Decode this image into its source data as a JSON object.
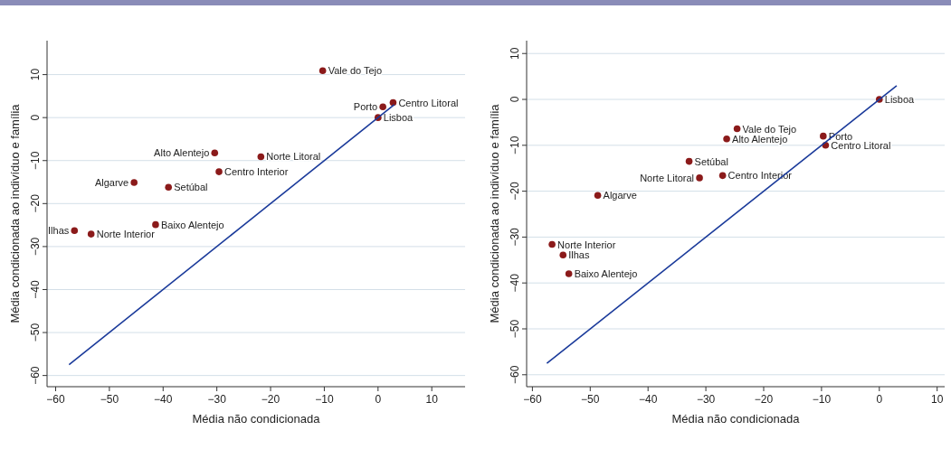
{
  "chart_data": [
    {
      "type": "scatter",
      "xlabel": "Média não condicionada",
      "ylabel": "Média condicionada ao indivíduo e família",
      "xlim": [
        -61.6,
        16.2
      ],
      "ylim": [
        -62.6,
        17.9
      ],
      "xticks": [
        {
          "value": -60,
          "label": "−60"
        },
        {
          "value": -50,
          "label": "−50"
        },
        {
          "value": -40,
          "label": "−40"
        },
        {
          "value": -30,
          "label": "−30"
        },
        {
          "value": -20,
          "label": "−20"
        },
        {
          "value": -10,
          "label": "−10"
        },
        {
          "value": 0,
          "label": "0"
        },
        {
          "value": 10,
          "label": "10"
        }
      ],
      "yticks": [
        {
          "value": -60,
          "label": "−60"
        },
        {
          "value": -50,
          "label": "−50"
        },
        {
          "value": -40,
          "label": "−40"
        },
        {
          "value": -30,
          "label": "−30"
        },
        {
          "value": -20,
          "label": "−20"
        },
        {
          "value": -10,
          "label": "−10"
        },
        {
          "value": 0,
          "label": "0"
        },
        {
          "value": 10,
          "label": "10"
        }
      ],
      "grid": "y",
      "marker": "circle",
      "series": [
        {
          "type": "scatter",
          "color": "#8b1a1a",
          "x": [
            -10.3,
            0.9,
            2.8,
            0.0,
            -30.4,
            -21.8,
            -29.6,
            -45.4,
            -39.0,
            -41.4,
            -56.5,
            -53.4
          ],
          "values": [
            10.9,
            2.5,
            3.5,
            0.0,
            -8.2,
            -9.1,
            -12.6,
            -15.1,
            -16.2,
            -24.9,
            -26.3,
            -27.1
          ]
        },
        {
          "type": "line",
          "color": "#1a3a9a",
          "marker": "none",
          "x": [
            -57.5,
            3
          ],
          "values": [
            -57.5,
            3
          ]
        }
      ],
      "annotations": [
        {
          "text": "Vale do Tejo",
          "x": -10.3,
          "y": 10.9
        },
        {
          "text": "Porto",
          "x": 0.9,
          "y": 2.5
        },
        {
          "text": "Centro Litoral",
          "x": 2.8,
          "y": 3.5
        },
        {
          "text": "Lisboa",
          "x": 0.0,
          "y": 0.0
        },
        {
          "text": "Alto Alentejo",
          "x": -30.4,
          "y": -8.2
        },
        {
          "text": "Norte Litoral",
          "x": -21.8,
          "y": -9.1
        },
        {
          "text": "Centro Interior",
          "x": -29.6,
          "y": -12.6
        },
        {
          "text": "Algarve",
          "x": -45.4,
          "y": -15.1
        },
        {
          "text": "Setúbal",
          "x": -39.0,
          "y": -16.2
        },
        {
          "text": "Baixo Alentejo",
          "x": -41.4,
          "y": -24.9
        },
        {
          "text": "Ilhas",
          "x": -56.5,
          "y": -26.3
        },
        {
          "text": "Norte Interior",
          "x": -53.4,
          "y": -27.1
        }
      ]
    },
    {
      "type": "scatter",
      "xlabel": "Média não condicionada",
      "ylabel": "Média condicionada ao indivíduo e família",
      "xlim": [
        -61.0,
        11.3
      ],
      "ylim": [
        -62.6,
        12.8
      ],
      "xticks": [
        {
          "value": -60,
          "label": "−60"
        },
        {
          "value": -50,
          "label": "−50"
        },
        {
          "value": -40,
          "label": "−40"
        },
        {
          "value": -30,
          "label": "−30"
        },
        {
          "value": -20,
          "label": "−20"
        },
        {
          "value": -10,
          "label": "−10"
        },
        {
          "value": 0,
          "label": "0"
        },
        {
          "value": 10,
          "label": "10"
        }
      ],
      "yticks": [
        {
          "value": -60,
          "label": "−60"
        },
        {
          "value": -50,
          "label": "−50"
        },
        {
          "value": -40,
          "label": "−40"
        },
        {
          "value": -30,
          "label": "−30"
        },
        {
          "value": -20,
          "label": "−20"
        },
        {
          "value": -10,
          "label": "−10"
        },
        {
          "value": 0,
          "label": "0"
        },
        {
          "value": 10,
          "label": "10"
        }
      ],
      "grid": "y",
      "marker": "circle",
      "series": [
        {
          "type": "scatter",
          "color": "#8b1a1a",
          "x": [
            0.0,
            -24.6,
            -26.4,
            -9.7,
            -9.3,
            -32.9,
            -31.1,
            -27.1,
            -48.7,
            -56.6,
            -54.7,
            -53.7
          ],
          "values": [
            0.0,
            -6.4,
            -8.6,
            -8.0,
            -10.0,
            -13.5,
            -17.1,
            -16.6,
            -20.9,
            -31.6,
            -33.9,
            -38.0
          ]
        },
        {
          "type": "line",
          "color": "#1a3a9a",
          "marker": "none",
          "x": [
            -57.5,
            3
          ],
          "values": [
            -57.5,
            3
          ]
        }
      ],
      "annotations": [
        {
          "text": "Lisboa",
          "x": 0.0,
          "y": 0.0
        },
        {
          "text": "Vale do Tejo",
          "x": -24.6,
          "y": -6.4
        },
        {
          "text": "Alto Alentejo",
          "x": -26.4,
          "y": -8.6
        },
        {
          "text": "Porto",
          "x": -9.7,
          "y": -8.0
        },
        {
          "text": "Centro Litoral",
          "x": -9.3,
          "y": -10.0
        },
        {
          "text": "Setúbal",
          "x": -32.9,
          "y": -13.5
        },
        {
          "text": "Norte Litoral",
          "x": -31.1,
          "y": -17.1
        },
        {
          "text": "Centro Interior",
          "x": -27.1,
          "y": -16.6
        },
        {
          "text": "Algarve",
          "x": -48.7,
          "y": -20.9
        },
        {
          "text": "Norte Interior",
          "x": -56.6,
          "y": -31.6
        },
        {
          "text": "Ilhas",
          "x": -54.7,
          "y": -33.9
        },
        {
          "text": "Baixo Alentejo",
          "x": -53.7,
          "y": -38.0
        }
      ]
    }
  ]
}
